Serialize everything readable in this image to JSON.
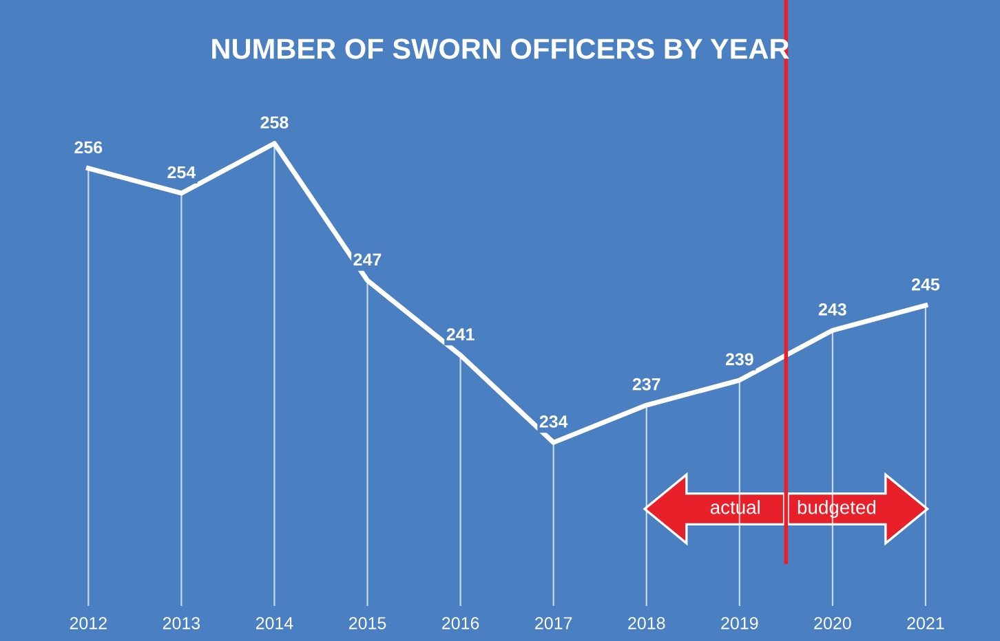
{
  "chart_data": {
    "type": "line",
    "title": "NUMBER OF SWORN OFFICERS BY YEAR",
    "x": [
      2012,
      2013,
      2014,
      2015,
      2016,
      2017,
      2018,
      2019,
      2020,
      2021
    ],
    "series": [
      {
        "color": "#ffffff",
        "values": [
          256,
          254,
          258,
          247,
          241,
          234,
          237,
          239,
          243,
          245
        ]
      }
    ],
    "xlim": [
      2011.05,
      2021.8
    ],
    "xticks": [
      2012,
      2013,
      2014,
      2015,
      2016,
      2017,
      2018,
      2019,
      2020,
      2021
    ],
    "tick_labels": "x",
    "data_labels": true,
    "grid": "x",
    "legend": false,
    "marker": "none",
    "line_style": "solid",
    "ref_lines": [
      {
        "axis": "x",
        "value": 2019.5,
        "color": "#e8202a",
        "line_style": "solid"
      }
    ],
    "annotations": [
      "actual",
      "budgeted"
    ]
  }
}
